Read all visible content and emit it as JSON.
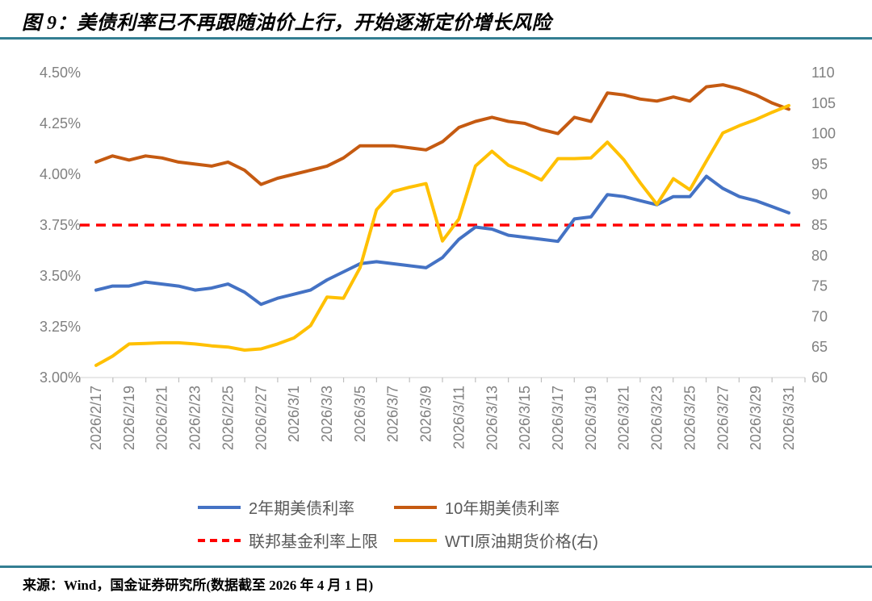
{
  "header": {
    "title": "图 9：美债利率已不再跟随油价上行，开始逐渐定价增长风险"
  },
  "footer": {
    "source": "来源：Wind，国金证券研究所(数据截至 2026 年 4 月 1 日)"
  },
  "colors": {
    "accent_rule": "#337E92",
    "axis_label": "#808080",
    "legend_text": "#595959",
    "axis_line": "#D9D9D9",
    "tick_mark": "#BFBFBF"
  },
  "chart_data": {
    "type": "line",
    "granularity": "daily",
    "dates": [
      "2026/2/17",
      "2026/2/18",
      "2026/2/19",
      "2026/2/20",
      "2026/2/21",
      "2026/2/22",
      "2026/2/23",
      "2026/2/24",
      "2026/2/25",
      "2026/2/26",
      "2026/2/27",
      "2026/2/28",
      "2026/3/1",
      "2026/3/2",
      "2026/3/3",
      "2026/3/4",
      "2026/3/5",
      "2026/3/6",
      "2026/3/7",
      "2026/3/8",
      "2026/3/9",
      "2026/3/10",
      "2026/3/11",
      "2026/3/12",
      "2026/3/13",
      "2026/3/14",
      "2026/3/15",
      "2026/3/16",
      "2026/3/17",
      "2026/3/18",
      "2026/3/19",
      "2026/3/20",
      "2026/3/21",
      "2026/3/22",
      "2026/3/23",
      "2026/3/24",
      "2026/3/25",
      "2026/3/26",
      "2026/3/27",
      "2026/3/28",
      "2026/3/29",
      "2026/3/30",
      "2026/3/31"
    ],
    "x_tick_labels": [
      "2026/2/17",
      "2026/2/19",
      "2026/2/21",
      "2026/2/23",
      "2026/2/25",
      "2026/2/27",
      "2026/3/1",
      "2026/3/3",
      "2026/3/5",
      "2026/3/7",
      "2026/3/9",
      "2026/3/11",
      "2026/3/13",
      "2026/3/15",
      "2026/3/17",
      "2026/3/19",
      "2026/3/21",
      "2026/3/23",
      "2026/3/25",
      "2026/3/27",
      "2026/3/29",
      "2026/3/31"
    ],
    "left_axis": {
      "min": 3.0,
      "max": 4.5,
      "step": 0.25,
      "tick_values": [
        3.0,
        3.25,
        3.5,
        3.75,
        4.0,
        4.25,
        4.5
      ],
      "ticks": [
        "3.00%",
        "3.25%",
        "3.50%",
        "3.75%",
        "4.00%",
        "4.25%",
        "4.50%"
      ]
    },
    "right_axis": {
      "min": 60,
      "max": 110,
      "step": 5,
      "tick_values": [
        60,
        65,
        70,
        75,
        80,
        85,
        90,
        95,
        100,
        105,
        110
      ],
      "ticks": [
        "60",
        "65",
        "70",
        "75",
        "80",
        "85",
        "90",
        "95",
        "100",
        "105",
        "110"
      ]
    },
    "grid": false,
    "legend_position": "bottom",
    "series": [
      {
        "id": "ust-2y",
        "name": "2年期美债利率",
        "axis": "left",
        "color": "#4472C4",
        "style": "solid",
        "values": [
          3.43,
          3.45,
          3.45,
          3.47,
          3.46,
          3.45,
          3.43,
          3.44,
          3.46,
          3.42,
          3.36,
          3.39,
          3.41,
          3.43,
          3.48,
          3.52,
          3.56,
          3.57,
          3.56,
          3.55,
          3.54,
          3.59,
          3.68,
          3.74,
          3.73,
          3.7,
          3.69,
          3.68,
          3.67,
          3.78,
          3.79,
          3.9,
          3.89,
          3.87,
          3.85,
          3.89,
          3.89,
          3.99,
          3.93,
          3.89,
          3.87,
          3.84,
          3.81
        ]
      },
      {
        "id": "ust-10y",
        "name": "10年期美债利率",
        "axis": "left",
        "color": "#C55A11",
        "style": "solid",
        "values": [
          4.06,
          4.09,
          4.07,
          4.09,
          4.08,
          4.06,
          4.05,
          4.04,
          4.06,
          4.02,
          3.95,
          3.98,
          4.0,
          4.02,
          4.04,
          4.08,
          4.14,
          4.14,
          4.14,
          4.13,
          4.12,
          4.16,
          4.23,
          4.26,
          4.28,
          4.26,
          4.25,
          4.22,
          4.2,
          4.28,
          4.26,
          4.4,
          4.39,
          4.37,
          4.36,
          4.38,
          4.36,
          4.43,
          4.44,
          4.42,
          4.39,
          4.35,
          4.32
        ]
      },
      {
        "id": "fed-funds-cap",
        "name": "联邦基金利率上限",
        "axis": "left",
        "color": "#FF0000",
        "style": "dashed",
        "const": 3.75
      },
      {
        "id": "wti-crude",
        "name": "WTI原油期货价格(右)",
        "axis": "right",
        "color": "#FFC000",
        "style": "solid",
        "values": [
          62.0,
          63.5,
          65.5,
          65.6,
          65.7,
          65.7,
          65.5,
          65.2,
          65.0,
          64.5,
          64.7,
          65.5,
          66.5,
          68.5,
          73.2,
          73.0,
          78.0,
          87.5,
          90.5,
          91.2,
          91.8,
          82.4,
          86.0,
          94.7,
          97.1,
          94.8,
          93.7,
          92.4,
          95.9,
          95.9,
          96.0,
          98.6,
          95.7,
          91.9,
          88.4,
          92.6,
          90.8,
          95.5,
          100.1,
          101.3,
          102.3,
          103.5,
          104.6
        ]
      }
    ],
    "draw_order": [
      2,
      0,
      1,
      3
    ],
    "legend_order": [
      0,
      1,
      2,
      3
    ]
  }
}
